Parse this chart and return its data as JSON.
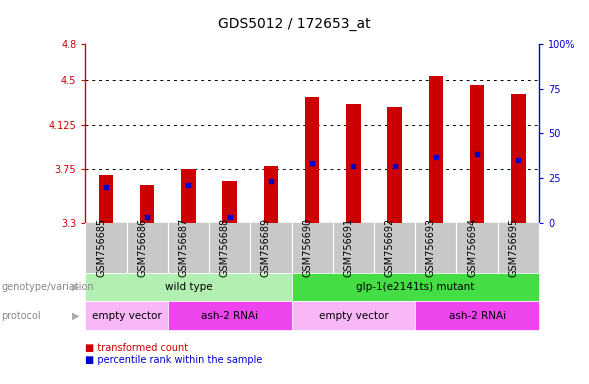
{
  "title": "GDS5012 / 172653_at",
  "samples": [
    "GSM756685",
    "GSM756686",
    "GSM756687",
    "GSM756688",
    "GSM756689",
    "GSM756690",
    "GSM756691",
    "GSM756692",
    "GSM756693",
    "GSM756694",
    "GSM756695"
  ],
  "bar_tops": [
    3.7,
    3.62,
    3.75,
    3.65,
    3.78,
    4.36,
    4.3,
    4.27,
    4.53,
    4.46,
    4.38
  ],
  "bar_bottom": 3.3,
  "blue_dot_y": [
    3.6,
    3.35,
    3.62,
    3.35,
    3.65,
    3.8,
    3.78,
    3.78,
    3.85,
    3.88,
    3.83
  ],
  "ylim_left": [
    3.3,
    4.8
  ],
  "yticks_left": [
    3.3,
    3.75,
    4.125,
    4.5,
    4.8
  ],
  "ytick_labels_left": [
    "3.3",
    "3.75",
    "4.125",
    "4.5",
    "4.8"
  ],
  "ylim_right": [
    0,
    100
  ],
  "yticks_right": [
    0,
    25,
    50,
    75,
    100
  ],
  "ytick_labels_right": [
    "0",
    "25",
    "50",
    "75",
    "100%"
  ],
  "bar_color": "#cc0000",
  "dot_color": "#0000cc",
  "xtick_bg_color": "#c8c8c8",
  "genotype_groups": [
    {
      "label": "wild type",
      "start": 0,
      "end": 5,
      "color": "#b2f0b2"
    },
    {
      "label": "glp-1(e2141ts) mutant",
      "start": 5,
      "end": 11,
      "color": "#44dd44"
    }
  ],
  "protocol_groups": [
    {
      "label": "empty vector",
      "start": 0,
      "end": 2,
      "color": "#f8b8f8"
    },
    {
      "label": "ash-2 RNAi",
      "start": 2,
      "end": 5,
      "color": "#ee44ee"
    },
    {
      "label": "empty vector",
      "start": 5,
      "end": 8,
      "color": "#f8b8f8"
    },
    {
      "label": "ash-2 RNAi",
      "start": 8,
      "end": 11,
      "color": "#ee44ee"
    }
  ],
  "bar_width": 0.35,
  "title_fontsize": 10,
  "tick_fontsize": 7,
  "annot_fontsize": 7.5,
  "label_fontsize": 7
}
